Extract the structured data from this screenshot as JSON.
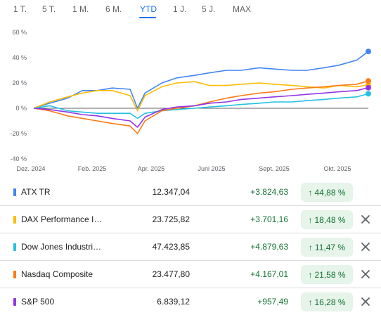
{
  "tabs": [
    {
      "label": "1 T.",
      "active": false
    },
    {
      "label": "5 T.",
      "active": false
    },
    {
      "label": "1 M.",
      "active": false
    },
    {
      "label": "6 M.",
      "active": false
    },
    {
      "label": "YTD",
      "active": true
    },
    {
      "label": "1 J.",
      "active": false
    },
    {
      "label": "5 J.",
      "active": false
    },
    {
      "label": "MAX",
      "active": false
    }
  ],
  "chart_data": {
    "type": "line",
    "title": "",
    "xlabel": "",
    "ylabel": "",
    "x_ticks": [
      "Dez. 2024",
      "Feb. 2025",
      "Apr. 2025",
      "Juni 2025",
      "Sept. 2025",
      "Okt. 2025"
    ],
    "y_ticks": [
      "60 %",
      "40 %",
      "20 %",
      "0 %",
      "-20 %",
      "-40 %"
    ],
    "ylim": [
      -40,
      60
    ],
    "grid": false,
    "zero_line": true,
    "x": [
      "2024-12-31",
      "2025-01-15",
      "2025-02-01",
      "2025-02-15",
      "2025-03-01",
      "2025-03-15",
      "2025-04-01",
      "2025-04-08",
      "2025-04-15",
      "2025-05-01",
      "2025-05-15",
      "2025-06-01",
      "2025-06-15",
      "2025-07-01",
      "2025-07-15",
      "2025-08-01",
      "2025-08-15",
      "2025-09-01",
      "2025-09-15",
      "2025-10-01",
      "2025-10-15",
      "2025-11-01",
      "2025-11-12"
    ],
    "series": [
      {
        "name": "ATX TR",
        "color": "#4285f4",
        "values": [
          0,
          4,
          8,
          14,
          14,
          16,
          15,
          0,
          12,
          20,
          24,
          26,
          28,
          30,
          30,
          32,
          31,
          30,
          30,
          32,
          34,
          38,
          44.88
        ]
      },
      {
        "name": "DAX Performance Index",
        "color": "#fbbc04",
        "values": [
          0,
          5,
          9,
          12,
          14,
          14,
          10,
          -2,
          10,
          17,
          20,
          21,
          18,
          18,
          19,
          20,
          19,
          18,
          17,
          16,
          18,
          17,
          18.48
        ]
      },
      {
        "name": "Dow Jones Industrial Average",
        "color": "#24c1e0",
        "values": [
          0,
          2,
          -2,
          -3,
          -4,
          -4,
          -4,
          -8,
          -4,
          -2,
          -1,
          0,
          1,
          2,
          3,
          4,
          5,
          5,
          6,
          7,
          8,
          9,
          11.47
        ]
      },
      {
        "name": "Nasdaq Composite",
        "color": "#fa7b17",
        "values": [
          0,
          -2,
          -6,
          -8,
          -10,
          -12,
          -14,
          -20,
          -10,
          -2,
          0,
          2,
          5,
          8,
          10,
          12,
          13,
          15,
          16,
          17,
          18,
          19,
          21.58
        ]
      },
      {
        "name": "S&P 500",
        "color": "#9334e6",
        "values": [
          0,
          -1,
          -3,
          -5,
          -6,
          -8,
          -10,
          -15,
          -7,
          -1,
          1,
          2,
          4,
          5,
          7,
          8,
          9,
          10,
          11,
          12,
          13,
          14,
          16.28
        ]
      }
    ]
  },
  "rows": [
    {
      "name": "ATX TR",
      "price": "12.347,04",
      "change": "+3.824,63",
      "pct": "44,88 %",
      "color": "#4285f4",
      "removable": false
    },
    {
      "name": "DAX Performance I…",
      "price": "23.725,82",
      "change": "+3.701,16",
      "pct": "18,48 %",
      "color": "#fbbc04",
      "removable": true
    },
    {
      "name": "Dow Jones Industri…",
      "price": "47.423,85",
      "change": "+4.879,63",
      "pct": "11,47 %",
      "color": "#24c1e0",
      "removable": true
    },
    {
      "name": "Nasdaq Composite",
      "price": "23.477,80",
      "change": "+4.167,01",
      "pct": "21,58 %",
      "color": "#fa7b17",
      "removable": true
    },
    {
      "name": "S&P 500",
      "price": "6.839,12",
      "change": "+957,49",
      "pct": "16,28 %",
      "color": "#9334e6",
      "removable": true
    }
  ],
  "icons": {
    "up": "arrow-up-icon",
    "remove": "close-icon"
  }
}
